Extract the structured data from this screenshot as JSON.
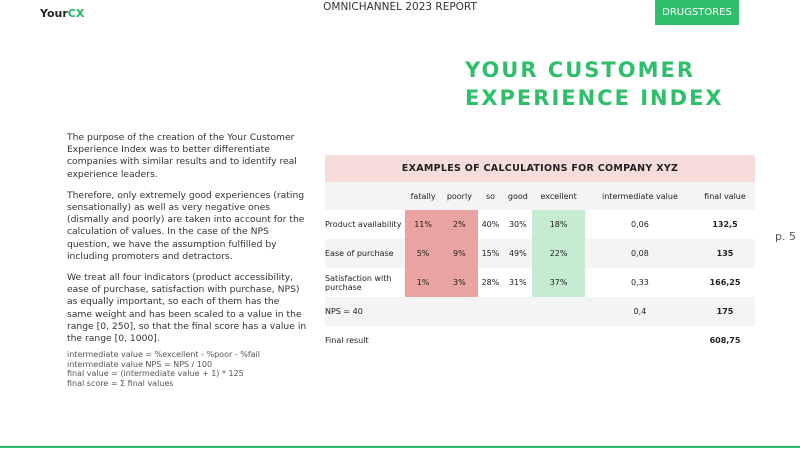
{
  "header": {
    "logo": {
      "part1": "Your",
      "part2": "CX"
    },
    "report": "OMNICHANNEL 2023 REPORT",
    "section": "DRUGSTORES"
  },
  "title": {
    "line1": "YOUR CUSTOMER",
    "line2": "EXPERIENCE INDEX"
  },
  "paragraphs": [
    "The purpose of the creation of the Your Customer Experience Index was to better differentiate companies with similar results and to identify real experience leaders.",
    "Therefore, only extremely good experiences (rating sensationally) as well as very negative ones (dismally and poorly) are taken into account for the calculation of values. In the case of the NPS question, we have the assumption fulfilled by including promoters and detractors.",
    "We treat all four indicators (product accessibility, ease of purchase, satisfaction with purchase, NPS) as equally important, so each of them has the same weight and has been scaled to a value in the range [0, 250], so that the final score has a value in the range [0, 1000]."
  ],
  "formulas": [
    "intermediate value = %excellent - %poor - %fail",
    "intermediate value NPS = NPS / 100",
    "final value = (intermediate value + 1) * 125",
    "final score = Σ final values"
  ],
  "table": {
    "title": "EXAMPLES OF CALCULATIONS FOR COMPANY XYZ",
    "columns": [
      "fatally",
      "poorly",
      "so",
      "good",
      "excellent",
      "intermediate value",
      "final value"
    ],
    "rows": [
      {
        "label": "Product availability",
        "shares": [
          "11%",
          "2%",
          "40%",
          "30%",
          "18%"
        ],
        "intermediate_value": "0,06",
        "final_value": "132,5"
      },
      {
        "label": "Ease of purchase",
        "shares": [
          "5%",
          "9%",
          "15%",
          "49%",
          "22%"
        ],
        "intermediate_value": "0,08",
        "final_value": "135"
      },
      {
        "label": "Satisfaction with purchase",
        "shares": [
          "1%",
          "3%",
          "28%",
          "31%",
          "37%"
        ],
        "intermediate_value": "0,33",
        "final_value": "166,25"
      },
      {
        "label": "NPS = 40",
        "intermediate_value": "0,4",
        "final_value": "175"
      },
      {
        "label": "Final result",
        "final_value": "608,75"
      }
    ]
  },
  "page_number": "p. 5"
}
